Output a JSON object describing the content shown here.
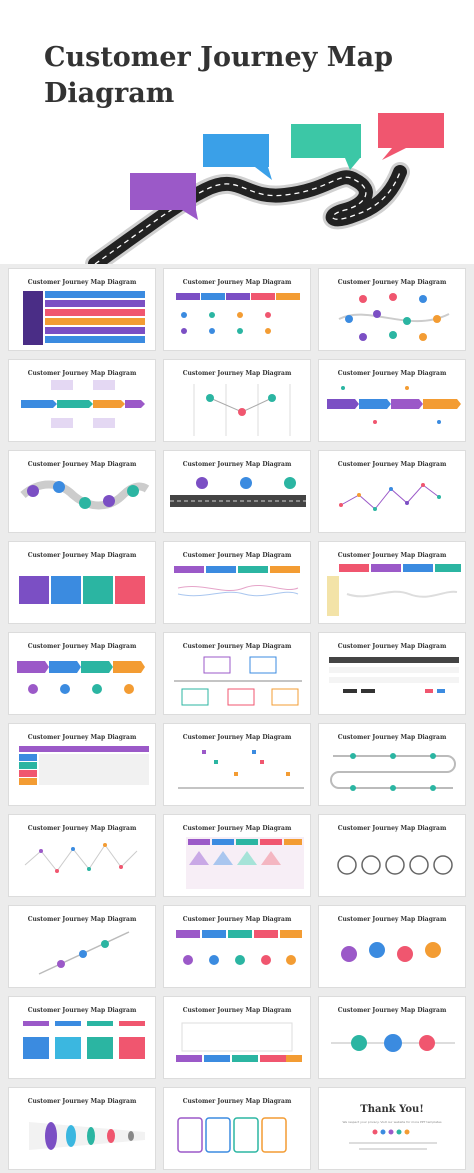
{
  "hero": {
    "title": "Customer Journey Map Diagram",
    "bubble_colors": [
      "#9b59c8",
      "#3aa0e8",
      "#3cc7a6",
      "#f0566f"
    ]
  },
  "slide_title": "Customer Journey Map Diagram",
  "thank_you": {
    "title": "Thank You!",
    "subtitle": "We respect your privacy. Visit our website for more PPT templates"
  },
  "palette": [
    "#7b4fc4",
    "#3b8be0",
    "#2bb5a2",
    "#f0566f",
    "#f39c33",
    "#9b59c8"
  ]
}
